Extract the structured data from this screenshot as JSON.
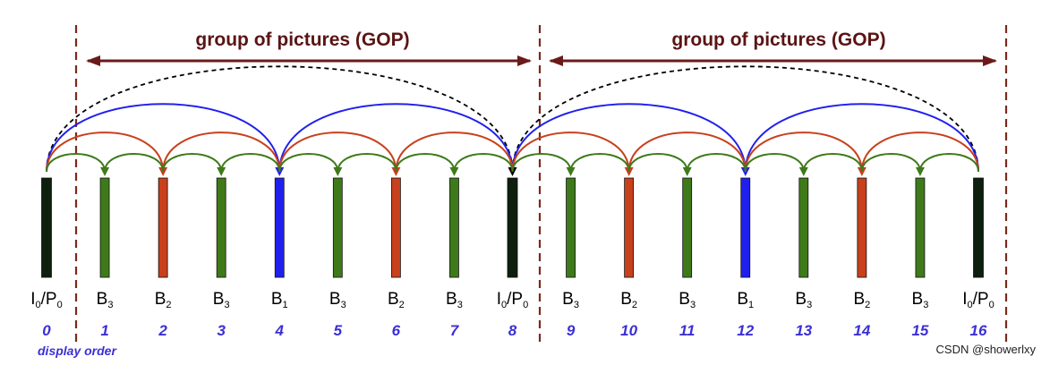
{
  "gop_label": "group of pictures (GOP)",
  "gops": [
    {
      "label": "group of pictures (GOP)"
    },
    {
      "label": "group of pictures (GOP)"
    }
  ],
  "frames": [
    {
      "order": "0",
      "type": "I",
      "sub": "0",
      "suffix": "/P",
      "suffix_sub": "0",
      "kind": "anchor"
    },
    {
      "order": "1",
      "type": "B",
      "sub": "3",
      "kind": "b3"
    },
    {
      "order": "2",
      "type": "B",
      "sub": "2",
      "kind": "b2"
    },
    {
      "order": "3",
      "type": "B",
      "sub": "3",
      "kind": "b3"
    },
    {
      "order": "4",
      "type": "B",
      "sub": "1",
      "kind": "b1"
    },
    {
      "order": "5",
      "type": "B",
      "sub": "3",
      "kind": "b3"
    },
    {
      "order": "6",
      "type": "B",
      "sub": "2",
      "kind": "b2"
    },
    {
      "order": "7",
      "type": "B",
      "sub": "3",
      "kind": "b3"
    },
    {
      "order": "8",
      "type": "I",
      "sub": "0",
      "suffix": "/P",
      "suffix_sub": "0",
      "kind": "anchor"
    },
    {
      "order": "9",
      "type": "B",
      "sub": "3",
      "kind": "b3"
    },
    {
      "order": "10",
      "type": "B",
      "sub": "2",
      "kind": "b2"
    },
    {
      "order": "11",
      "type": "B",
      "sub": "3",
      "kind": "b3"
    },
    {
      "order": "12",
      "type": "B",
      "sub": "1",
      "kind": "b1"
    },
    {
      "order": "13",
      "type": "B",
      "sub": "3",
      "kind": "b3"
    },
    {
      "order": "14",
      "type": "B",
      "sub": "2",
      "kind": "b2"
    },
    {
      "order": "15",
      "type": "B",
      "sub": "3",
      "kind": "b3"
    },
    {
      "order": "16",
      "type": "I",
      "sub": "0",
      "suffix": "/P",
      "suffix_sub": "0",
      "kind": "anchor"
    }
  ],
  "caption": "display order",
  "watermark": "CSDN @showerlxy",
  "colors": {
    "anchor": "#0d1f0d",
    "b1": "#2020ee",
    "b2": "#c8401c",
    "b3": "#3f7a1a",
    "gop_arrow": "#6b1a1a",
    "dashed_line": "#7a2a1a",
    "long_arc": "#000000",
    "order_text": "#3b2fd6"
  }
}
